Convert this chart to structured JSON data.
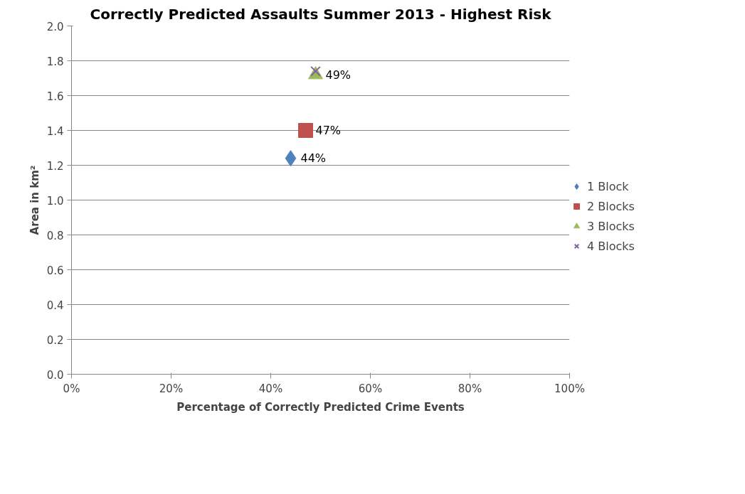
{
  "chart_data": {
    "type": "scatter",
    "title": "Correctly Predicted Assaults Summer 2013 - Highest Risk",
    "xlabel": "Percentage of Correctly Predicted Crime Events",
    "ylabel": "Area in km²",
    "xlim": [
      0,
      100
    ],
    "xticks": [
      {
        "value": 0,
        "label": "0%"
      },
      {
        "value": 20,
        "label": "20%"
      },
      {
        "value": 40,
        "label": "40%"
      },
      {
        "value": 60,
        "label": "60%"
      },
      {
        "value": 80,
        "label": "80%"
      },
      {
        "value": 100,
        "label": "100%"
      }
    ],
    "ylim": [
      0,
      2
    ],
    "yticks": [
      {
        "value": 0,
        "label": "0.0"
      },
      {
        "value": 0.2,
        "label": "0.2"
      },
      {
        "value": 0.4,
        "label": "0.4"
      },
      {
        "value": 0.6,
        "label": "0.6"
      },
      {
        "value": 0.8,
        "label": "0.8"
      },
      {
        "value": 1.0,
        "label": "1.0"
      },
      {
        "value": 1.2,
        "label": "1.2"
      },
      {
        "value": 1.4,
        "label": "1.4"
      },
      {
        "value": 1.6,
        "label": "1.6"
      },
      {
        "value": 1.8,
        "label": "1.8"
      },
      {
        "value": 2.0,
        "label": "2.0"
      }
    ],
    "grid": "y",
    "legend": "right",
    "annotations": [
      {
        "text": "44%",
        "x": 44,
        "y": 1.24
      },
      {
        "text": "47%",
        "x": 47,
        "y": 1.4
      },
      {
        "text": "49%",
        "x": 49,
        "y": 1.72
      }
    ],
    "series": [
      {
        "name": "1 Block",
        "color": "#4f81bd",
        "marker": "diamond",
        "x": [
          44
        ],
        "values": [
          1.24
        ]
      },
      {
        "name": "2 Blocks",
        "color": "#c0504d",
        "marker": "square",
        "x": [
          47
        ],
        "values": [
          1.4
        ]
      },
      {
        "name": "3 Blocks",
        "color": "#9bbb59",
        "marker": "triangle",
        "x": [
          49
        ],
        "values": [
          1.72
        ]
      },
      {
        "name": "4 Blocks",
        "color": "#8064a2",
        "marker": "cross",
        "x": [
          49
        ],
        "values": [
          1.74
        ]
      }
    ]
  }
}
